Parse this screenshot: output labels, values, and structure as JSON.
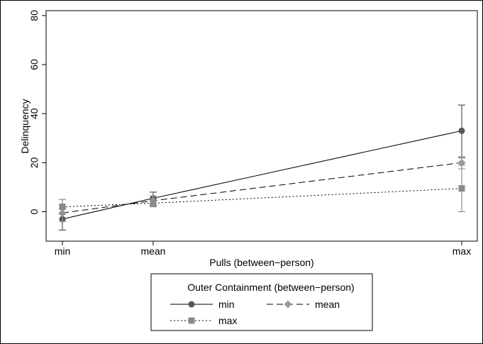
{
  "chart_data": {
    "type": "line",
    "xlabel": "Pulls (between−person)",
    "ylabel": "Delinquency",
    "categories": [
      "min",
      "mean",
      "max"
    ],
    "x": [
      0,
      1,
      4.4
    ],
    "ylim": [
      -12,
      82
    ],
    "yticks": [
      0,
      20,
      40,
      60,
      80
    ],
    "grid": false,
    "legend": {
      "title": "Outer Containment (between−person)",
      "placement": "bottom-center"
    },
    "series": [
      {
        "name": "min",
        "values": [
          -3,
          5.5,
          33
        ],
        "ci_low": [
          -7.5,
          3,
          22
        ],
        "ci_high": [
          1.5,
          8,
          43.5
        ],
        "style": "solid",
        "marker": "circle",
        "color": "#555555"
      },
      {
        "name": "mean",
        "values": [
          -0.5,
          4.5,
          20
        ],
        "ci_low": [
          -4,
          2.5,
          17.5
        ],
        "ci_high": [
          3,
          6.5,
          22.5
        ],
        "style": "dashed",
        "marker": "diamond",
        "color": "#999999"
      },
      {
        "name": "max",
        "values": [
          2,
          3.5,
          9.5
        ],
        "ci_low": [
          -1,
          2,
          0
        ],
        "ci_high": [
          5,
          5,
          19
        ],
        "style": "dotted",
        "marker": "square",
        "color": "#8a8a8a"
      }
    ]
  }
}
